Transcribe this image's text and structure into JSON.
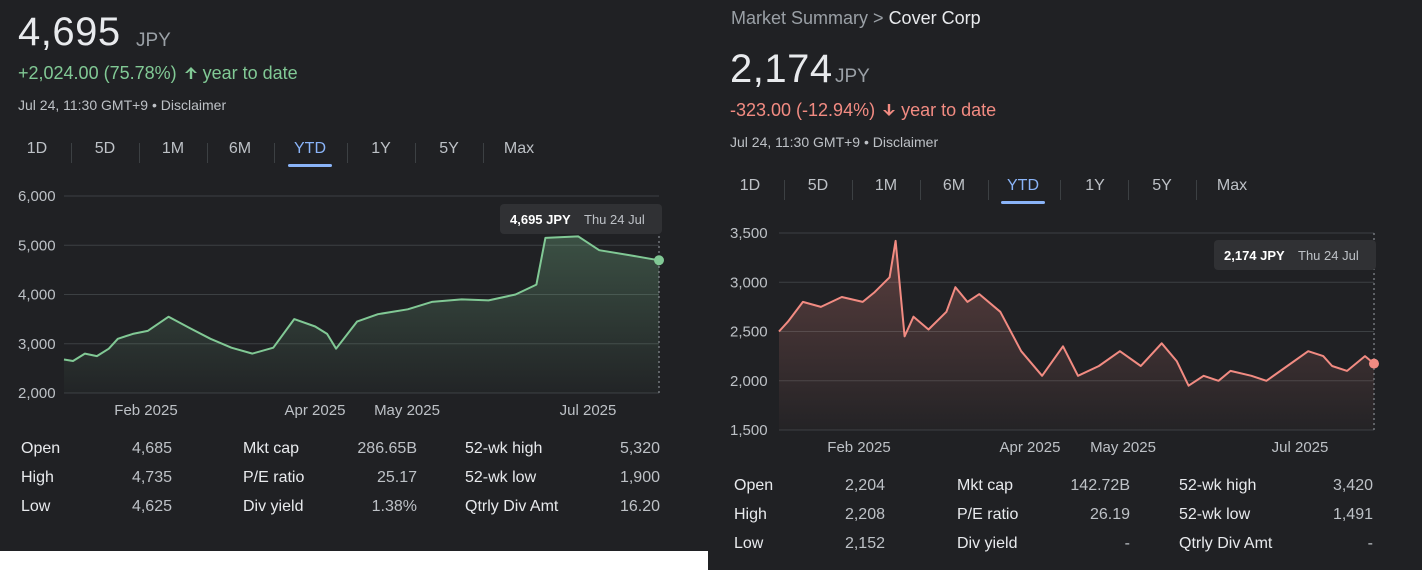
{
  "left": {
    "price": "4,695",
    "currency": "JPY",
    "change_text": "+2,024.00 (75.78%)",
    "change_suffix": "year to date",
    "meta": "Jul 24, 11:30 GMT+9 • Disclaimer",
    "tabs": [
      "1D",
      "5D",
      "1M",
      "6M",
      "YTD",
      "1Y",
      "5Y",
      "Max"
    ],
    "active_tab": "YTD",
    "tooltip_value": "4,695 JPY",
    "tooltip_date": "Thu 24 Jul",
    "stats": [
      {
        "label": "Open",
        "value": "4,685"
      },
      {
        "label": "High",
        "value": "4,735"
      },
      {
        "label": "Low",
        "value": "4,625"
      },
      {
        "label": "Mkt cap",
        "value": "286.65B"
      },
      {
        "label": "P/E ratio",
        "value": "25.17"
      },
      {
        "label": "Div yield",
        "value": "1.38%"
      },
      {
        "label": "52-wk high",
        "value": "5,320"
      },
      {
        "label": "52-wk low",
        "value": "1,900"
      },
      {
        "label": "Qtrly Div Amt",
        "value": "16.20"
      }
    ],
    "colors": {
      "line": "#81c995",
      "text": "#81c995"
    }
  },
  "right": {
    "breadcrumb_prefix": "Market Summary >",
    "breadcrumb_current": "Cover Corp",
    "price": "2,174",
    "currency": "JPY",
    "change_text": "-323.00 (-12.94%)",
    "change_suffix": "year to date",
    "meta": "Jul 24, 11:30 GMT+9 • Disclaimer",
    "tabs": [
      "1D",
      "5D",
      "1M",
      "6M",
      "YTD",
      "1Y",
      "5Y",
      "Max"
    ],
    "active_tab": "YTD",
    "tooltip_value": "2,174 JPY",
    "tooltip_date": "Thu 24 Jul",
    "stats": [
      {
        "label": "Open",
        "value": "2,204"
      },
      {
        "label": "High",
        "value": "2,208"
      },
      {
        "label": "Low",
        "value": "2,152"
      },
      {
        "label": "Mkt cap",
        "value": "142.72B"
      },
      {
        "label": "P/E ratio",
        "value": "26.19"
      },
      {
        "label": "Div yield",
        "value": "-"
      },
      {
        "label": "52-wk high",
        "value": "3,420"
      },
      {
        "label": "52-wk low",
        "value": "1,491"
      },
      {
        "label": "Qtrly Div Amt",
        "value": "-"
      }
    ],
    "colors": {
      "line": "#f28b82",
      "text": "#f28b82"
    }
  },
  "chart_data": [
    {
      "type": "line",
      "series": [
        {
          "values": [
            2680,
            2650,
            2800,
            2750,
            2900,
            3100,
            3200,
            3260,
            3550,
            3320,
            3100,
            2920,
            2800,
            2920,
            3500,
            3350,
            3200,
            2900,
            3450,
            3600,
            3700,
            3850,
            3900,
            3880,
            4000,
            4200,
            5150,
            5180,
            4900,
            4800,
            4695
          ]
        }
      ],
      "x": [
        "2025-01-06",
        "2025-01-09",
        "2025-01-13",
        "2025-01-17",
        "2025-01-21",
        "2025-01-24",
        "2025-01-29",
        "2025-02-03",
        "2025-02-10",
        "2025-02-17",
        "2025-02-24",
        "2025-03-03",
        "2025-03-10",
        "2025-03-17",
        "2025-03-24",
        "2025-03-31",
        "2025-04-04",
        "2025-04-07",
        "2025-04-14",
        "2025-04-21",
        "2025-05-01",
        "2025-05-09",
        "2025-05-19",
        "2025-05-28",
        "2025-06-06",
        "2025-06-13",
        "2025-06-16",
        "2025-06-27",
        "2025-07-04",
        "2025-07-14",
        "2025-07-24"
      ],
      "xticks": [
        "Feb 2025",
        "Apr 2025",
        "May 2025",
        "Jul 2025"
      ],
      "yticks": [
        "2,000",
        "3,000",
        "4,000",
        "5,000",
        "6,000"
      ],
      "ylim": [
        2000,
        6000
      ],
      "grid": true
    },
    {
      "type": "line",
      "series": [
        {
          "values": [
            2500,
            2600,
            2800,
            2750,
            2850,
            2800,
            2900,
            3050,
            3420,
            2450,
            2650,
            2520,
            2700,
            2950,
            2800,
            2880,
            2700,
            2300,
            2050,
            2350,
            2050,
            2150,
            2300,
            2150,
            2380,
            2200,
            1950,
            2050,
            2000,
            2100,
            2050,
            2000,
            2150,
            2300,
            2250,
            2150,
            2100,
            2250,
            2174
          ]
        }
      ],
      "x": [
        "2025-01-06",
        "2025-01-09",
        "2025-01-14",
        "2025-01-20",
        "2025-01-27",
        "2025-02-03",
        "2025-02-07",
        "2025-02-12",
        "2025-02-14",
        "2025-02-17",
        "2025-02-20",
        "2025-02-25",
        "2025-03-03",
        "2025-03-06",
        "2025-03-10",
        "2025-03-14",
        "2025-03-21",
        "2025-03-28",
        "2025-04-04",
        "2025-04-11",
        "2025-04-16",
        "2025-04-23",
        "2025-04-30",
        "2025-05-07",
        "2025-05-14",
        "2025-05-19",
        "2025-05-23",
        "2025-05-28",
        "2025-06-02",
        "2025-06-06",
        "2025-06-13",
        "2025-06-18",
        "2025-06-25",
        "2025-07-02",
        "2025-07-07",
        "2025-07-10",
        "2025-07-15",
        "2025-07-21",
        "2025-07-24"
      ],
      "xticks": [
        "Feb 2025",
        "Apr 2025",
        "May 2025",
        "Jul 2025"
      ],
      "yticks": [
        "1,500",
        "2,000",
        "2,500",
        "3,000",
        "3,500"
      ],
      "ylim": [
        1500,
        3500
      ],
      "grid": true
    }
  ]
}
